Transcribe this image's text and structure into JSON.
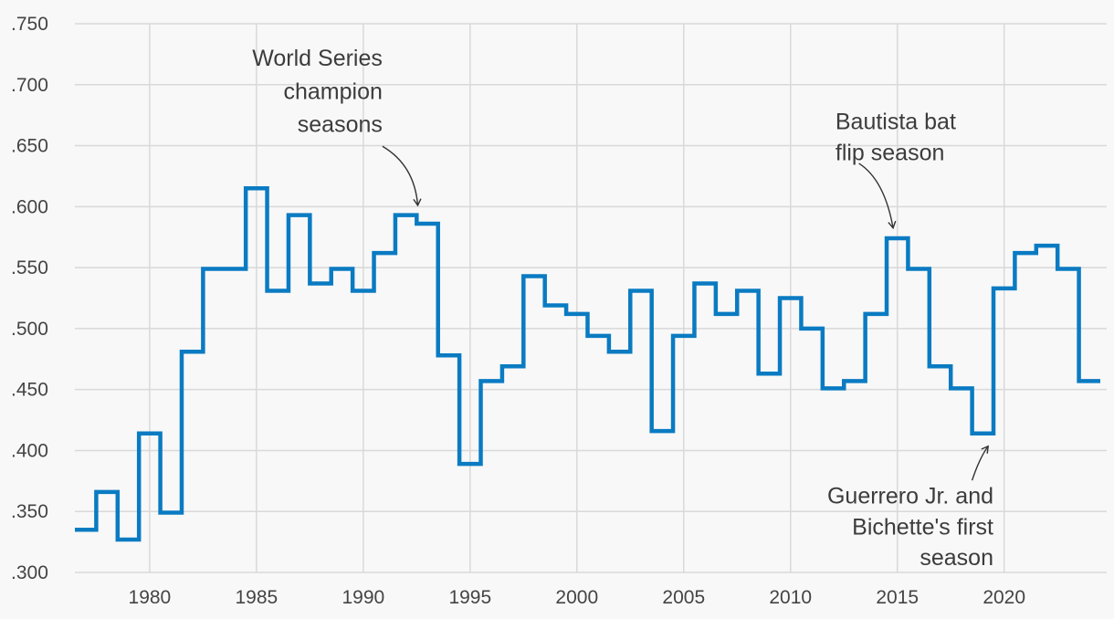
{
  "chart_data": {
    "type": "line",
    "step": true,
    "line_color": "#0a7bc2",
    "grid": true,
    "xlim": [
      1976.5,
      2024.8
    ],
    "ylim": [
      0.3,
      0.75
    ],
    "y_ticks": [
      {
        "value": 0.3,
        "label": ".300"
      },
      {
        "value": 0.35,
        "label": ".350"
      },
      {
        "value": 0.4,
        "label": ".400"
      },
      {
        "value": 0.45,
        "label": ".450"
      },
      {
        "value": 0.5,
        "label": ".500"
      },
      {
        "value": 0.55,
        "label": ".550"
      },
      {
        "value": 0.6,
        "label": ".600"
      },
      {
        "value": 0.65,
        "label": ".650"
      },
      {
        "value": 0.7,
        "label": ".700"
      },
      {
        "value": 0.75,
        "label": ".750"
      }
    ],
    "x_ticks": [
      {
        "value": 1980,
        "label": "1980"
      },
      {
        "value": 1985,
        "label": "1985"
      },
      {
        "value": 1990,
        "label": "1990"
      },
      {
        "value": 1995,
        "label": "1995"
      },
      {
        "value": 2000,
        "label": "2000"
      },
      {
        "value": 2005,
        "label": "2005"
      },
      {
        "value": 2010,
        "label": "2010"
      },
      {
        "value": 2015,
        "label": "2015"
      },
      {
        "value": 2020,
        "label": "2020"
      }
    ],
    "series": [
      {
        "x": [
          1977,
          1978,
          1979,
          1980,
          1981,
          1982,
          1983,
          1984,
          1985,
          1986,
          1987,
          1988,
          1989,
          1990,
          1991,
          1992,
          1993,
          1994,
          1995,
          1996,
          1997,
          1998,
          1999,
          2000,
          2001,
          2002,
          2003,
          2004,
          2005,
          2006,
          2007,
          2008,
          2009,
          2010,
          2011,
          2012,
          2013,
          2014,
          2015,
          2016,
          2017,
          2018,
          2019,
          2020,
          2021,
          2022,
          2023,
          2024
        ],
        "y": [
          0.335,
          0.366,
          0.327,
          0.414,
          0.349,
          0.481,
          0.549,
          0.549,
          0.615,
          0.531,
          0.593,
          0.537,
          0.549,
          0.531,
          0.562,
          0.593,
          0.586,
          0.478,
          0.389,
          0.457,
          0.469,
          0.543,
          0.519,
          0.512,
          0.494,
          0.481,
          0.531,
          0.416,
          0.494,
          0.537,
          0.512,
          0.531,
          0.463,
          0.525,
          0.5,
          0.451,
          0.457,
          0.512,
          0.574,
          0.549,
          0.469,
          0.451,
          0.414,
          0.533,
          0.562,
          0.568,
          0.549,
          0.457
        ]
      }
    ],
    "annotations": [
      {
        "lines": [
          "World Series",
          "champion",
          "seasons"
        ],
        "align": "end",
        "anchor_x": 1990.9,
        "anchor_y": 0.7155,
        "line_step_y": 0.0271,
        "arrow": {
          "from": [
            1990.9,
            0.6495
          ],
          "ctrl": [
            1992.4,
            0.634
          ],
          "to": [
            1992.55,
            0.601
          ]
        }
      },
      {
        "lines": [
          "Bautista bat",
          "flip season"
        ],
        "align": "start",
        "anchor_x": 2012.1,
        "anchor_y": 0.6635,
        "line_step_y": 0.0253,
        "arrow": {
          "from": [
            2013.2,
            0.6355
          ],
          "ctrl": [
            2014.4,
            0.622
          ],
          "to": [
            2014.8,
            0.5825
          ]
        }
      },
      {
        "lines": [
          "Guerrero Jr. and",
          "Bichette's first",
          "season"
        ],
        "align": "end",
        "anchor_x": 2019.5,
        "anchor_y": 0.3565,
        "line_step_y": 0.0253,
        "arrow": {
          "from": [
            2018.5,
            0.3755
          ],
          "ctrl": [
            2018.85,
            0.394
          ],
          "to": [
            2019.25,
            0.4035
          ]
        }
      }
    ]
  }
}
